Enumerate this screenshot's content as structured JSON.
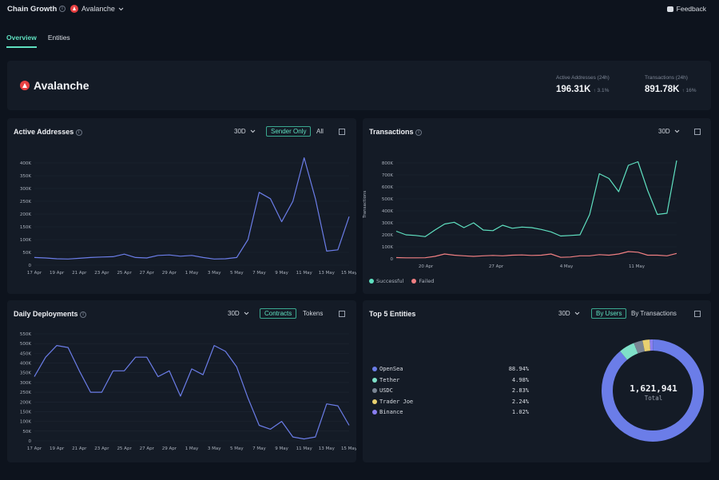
{
  "header": {
    "title": "Chain Growth",
    "chain": "Avalanche",
    "feedback": "Feedback"
  },
  "tabs": [
    {
      "label": "Overview",
      "active": true
    },
    {
      "label": "Entities",
      "active": false
    }
  ],
  "hero": {
    "name": "Avalanche",
    "stats": [
      {
        "label": "Active Addresses (24h)",
        "value": "196.31K",
        "change": "↑ 3.1%"
      },
      {
        "label": "Transactions (24h)",
        "value": "891.78K",
        "change": "↑ 16%"
      }
    ]
  },
  "colors": {
    "accent": "#5fe0c0",
    "line_blue": "#6b7de8",
    "successful": "#5fe0c0",
    "failed": "#f07f82"
  },
  "active_addresses": {
    "title": "Active Addresses",
    "range": "30D",
    "toggle_active": "Sender Only",
    "toggle_other": "All"
  },
  "transactions": {
    "title": "Transactions",
    "range": "30D",
    "ylabel": "Transactions",
    "legend_successful": "Successful",
    "legend_failed": "Failed"
  },
  "daily_deployments": {
    "title": "Daily Deployments",
    "range": "30D",
    "toggle_active": "Contracts",
    "toggle_other": "Tokens"
  },
  "top_entities": {
    "title": "Top 5 Entities",
    "range": "30D",
    "toggle_active": "By Users",
    "toggle_other": "By Transactions",
    "total_value": "1,621,941",
    "total_label": "Total",
    "entities": [
      {
        "name": "OpenSea",
        "pct": "88.94%",
        "share": 88.94,
        "color": "#6b7de8"
      },
      {
        "name": "Tether",
        "pct": "4.98%",
        "share": 4.98,
        "color": "#7fe0c8"
      },
      {
        "name": "USDC",
        "pct": "2.83%",
        "share": 2.83,
        "color": "#7a8594"
      },
      {
        "name": "Trader Joe",
        "pct": "2.24%",
        "share": 2.24,
        "color": "#e8d070"
      },
      {
        "name": "Binance",
        "pct": "1.02%",
        "share": 1.02,
        "color": "#8a7ef0"
      }
    ]
  },
  "chart_data": [
    {
      "type": "line",
      "title": "Active Addresses",
      "x_ticks": [
        "17 Apr",
        "19 Apr",
        "21 Apr",
        "23 Apr",
        "25 Apr",
        "27 Apr",
        "29 Apr",
        "1 May",
        "3 May",
        "5 May",
        "7 May",
        "9 May",
        "11 May",
        "13 May",
        "15 May"
      ],
      "y_ticks": [
        "0",
        "50K",
        "100K",
        "150K",
        "200K",
        "250K",
        "300K",
        "350K",
        "400K"
      ],
      "ylim": [
        0,
        400000
      ],
      "series": [
        {
          "values": [
            30000,
            28000,
            25000,
            24000,
            27000,
            30000,
            32000,
            33000,
            43000,
            30000,
            28000,
            38000,
            40000,
            35000,
            38000,
            30000,
            24000,
            25000,
            30000,
            100000,
            285000,
            260000,
            170000,
            250000,
            420000,
            260000,
            55000,
            60000,
            190000
          ]
        }
      ]
    },
    {
      "type": "line",
      "title": "Transactions",
      "ylabel": "Transactions",
      "x_ticks": [
        "20 Apr",
        "27 Apr",
        "4 May",
        "11 May"
      ],
      "y_ticks": [
        "0",
        "100K",
        "200K",
        "300K",
        "400K",
        "500K",
        "600K",
        "700K",
        "800K"
      ],
      "ylim": [
        0,
        800000
      ],
      "series": [
        {
          "name": "Successful",
          "values": [
            230000,
            200000,
            195000,
            185000,
            240000,
            290000,
            305000,
            260000,
            300000,
            240000,
            235000,
            280000,
            255000,
            265000,
            260000,
            245000,
            225000,
            190000,
            195000,
            200000,
            370000,
            710000,
            670000,
            560000,
            780000,
            810000,
            570000,
            370000,
            380000,
            820000
          ]
        },
        {
          "name": "Failed",
          "values": [
            10000,
            8000,
            8000,
            9000,
            20000,
            40000,
            30000,
            25000,
            20000,
            25000,
            28000,
            25000,
            30000,
            32000,
            28000,
            30000,
            40000,
            12000,
            15000,
            25000,
            25000,
            35000,
            30000,
            40000,
            60000,
            55000,
            30000,
            30000,
            25000,
            45000
          ]
        }
      ]
    },
    {
      "type": "line",
      "title": "Daily Deployments",
      "x_ticks": [
        "17 Apr",
        "19 Apr",
        "21 Apr",
        "23 Apr",
        "25 Apr",
        "27 Apr",
        "29 Apr",
        "1 May",
        "3 May",
        "5 May",
        "7 May",
        "9 May",
        "11 May",
        "13 May",
        "15 May"
      ],
      "y_ticks": [
        "0",
        "50K",
        "100K",
        "150K",
        "200K",
        "250K",
        "300K",
        "350K",
        "400K",
        "450K",
        "500K",
        "550K"
      ],
      "ylim": [
        0,
        550000
      ],
      "series": [
        {
          "values": [
            330000,
            430000,
            490000,
            480000,
            360000,
            250000,
            250000,
            360000,
            360000,
            430000,
            430000,
            330000,
            360000,
            230000,
            370000,
            340000,
            490000,
            460000,
            380000,
            220000,
            80000,
            60000,
            100000,
            20000,
            10000,
            20000,
            190000,
            180000,
            80000
          ]
        }
      ]
    },
    {
      "type": "pie",
      "title": "Top 5 Entities",
      "categories": [
        "OpenSea",
        "Tether",
        "USDC",
        "Trader Joe",
        "Binance"
      ],
      "values": [
        88.94,
        4.98,
        2.83,
        2.24,
        1.02
      ]
    }
  ]
}
